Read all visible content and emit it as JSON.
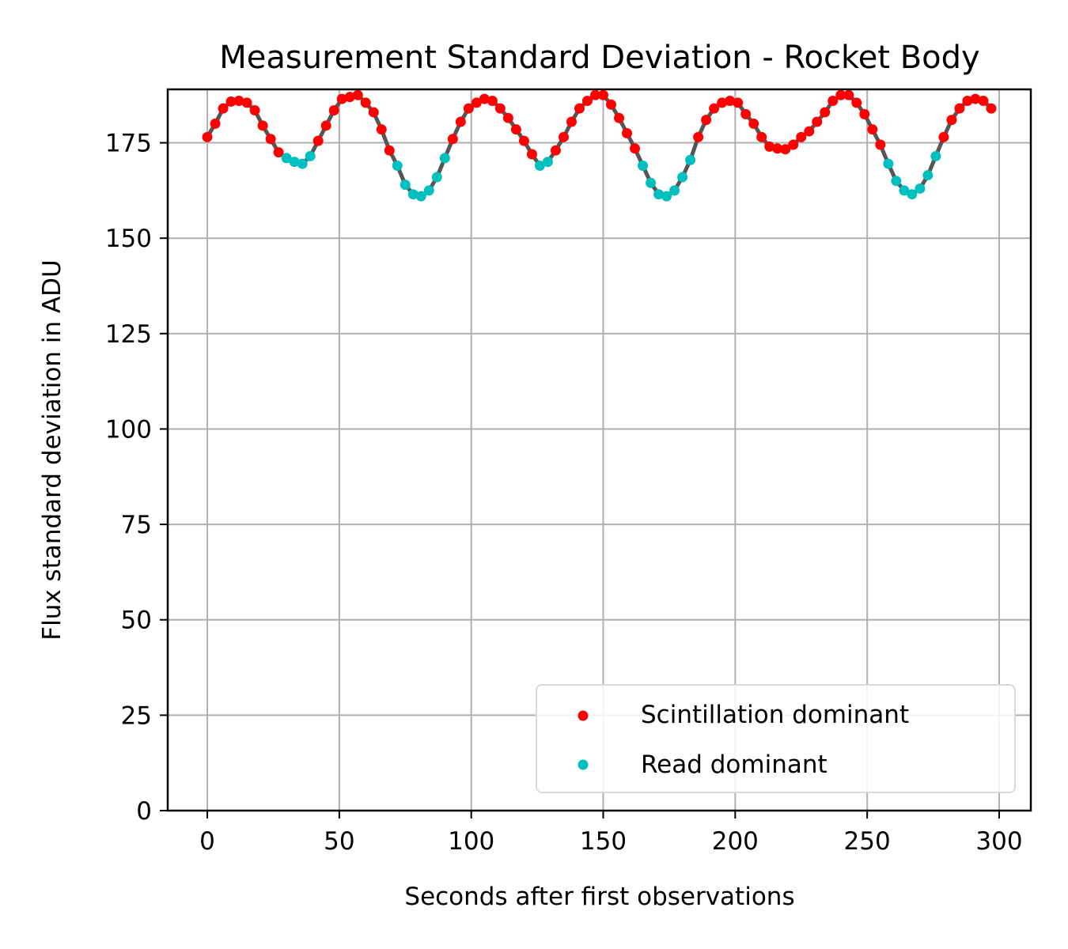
{
  "chart_data": {
    "type": "scatter",
    "title": "Measurement Standard Deviation - Rocket Body",
    "xlabel": "Seconds after first observations",
    "ylabel": "Flux standard deviation in ADU",
    "xlim": [
      -15,
      312
    ],
    "ylim": [
      0,
      189
    ],
    "xticks": [
      0,
      50,
      100,
      150,
      200,
      250,
      300
    ],
    "yticks": [
      0,
      25,
      50,
      75,
      100,
      125,
      150,
      175
    ],
    "grid": true,
    "legend": "bottom-right",
    "x": [
      0,
      3,
      6,
      9,
      12,
      15,
      18,
      21,
      24,
      27,
      30,
      33,
      36,
      39,
      42,
      45,
      48,
      51,
      54,
      57,
      60,
      63,
      66,
      69,
      72,
      75,
      78,
      81,
      84,
      87,
      90,
      93,
      96,
      99,
      102,
      105,
      108,
      111,
      114,
      117,
      120,
      123,
      126,
      129,
      132,
      135,
      138,
      141,
      144,
      147,
      150,
      153,
      156,
      159,
      162,
      165,
      168,
      171,
      174,
      177,
      180,
      183,
      186,
      189,
      192,
      195,
      198,
      201,
      204,
      207,
      210,
      213,
      216,
      219,
      222,
      225,
      228,
      231,
      234,
      237,
      240,
      243,
      246,
      249,
      252,
      255,
      258,
      261,
      264,
      267,
      270,
      273,
      276,
      279,
      282,
      285,
      288,
      291,
      294,
      297
    ],
    "y": [
      176.5,
      180,
      184,
      185.8,
      186,
      185.5,
      183.5,
      179.5,
      176,
      172.5,
      171,
      170,
      169.5,
      171.5,
      175.5,
      179.5,
      183.5,
      186.5,
      187,
      187.5,
      185.5,
      183,
      178.5,
      173,
      169,
      164,
      161.5,
      161,
      162.5,
      166,
      171,
      176,
      180.5,
      184,
      185.5,
      186.5,
      186,
      184,
      181.5,
      178.5,
      175.5,
      172,
      169,
      170,
      173,
      176.5,
      180.5,
      184,
      186,
      187.5,
      187.5,
      185,
      181.5,
      177.5,
      173.5,
      169,
      164.5,
      161.5,
      161,
      162.5,
      166,
      170.5,
      176.5,
      181,
      184,
      185.5,
      186,
      185.5,
      182.5,
      180,
      176.5,
      174,
      173.5,
      173.3,
      174.5,
      176.5,
      178,
      180.5,
      183,
      186,
      187.5,
      187.5,
      185.5,
      182.5,
      178.5,
      174.5,
      169.5,
      165,
      162.5,
      161.5,
      163,
      166.5,
      171.5,
      176.5,
      181,
      184,
      186,
      186.5,
      186,
      184
    ],
    "series": [
      {
        "name": "Scintillation dominant",
        "color": "#ff0000"
      },
      {
        "name": "Read dominant",
        "color": "#00bfbf"
      }
    ],
    "read_dominant_threshold": 172,
    "line_color": "#555555"
  }
}
